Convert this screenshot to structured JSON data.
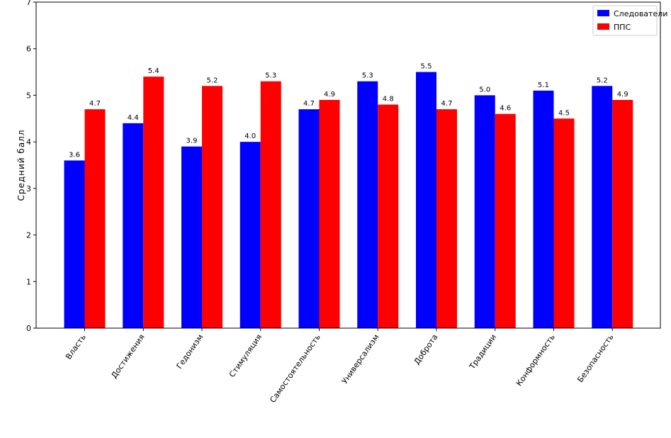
{
  "chart_data": {
    "type": "bar",
    "categories": [
      "Власть",
      "Достижения",
      "Гедонизм",
      "Стимуляция",
      "Самостоятельность",
      "Универсализм",
      "Доброта",
      "Традиции",
      "Конформность",
      "Безопасность"
    ],
    "series": [
      {
        "name": "Следователи",
        "color": "#0000ff",
        "values": [
          3.6,
          4.4,
          3.9,
          4.0,
          4.7,
          5.3,
          5.5,
          5.0,
          5.1,
          5.2
        ]
      },
      {
        "name": "ППС",
        "color": "#ff0000",
        "values": [
          4.7,
          5.4,
          5.2,
          5.3,
          4.9,
          4.8,
          4.7,
          4.6,
          4.5,
          4.9
        ]
      }
    ],
    "title": "",
    "xlabel": "",
    "ylabel": "Средний балл",
    "ylim": [
      0,
      7
    ],
    "yticks": [
      0,
      1,
      2,
      3,
      4,
      5,
      6,
      7
    ],
    "grid": false,
    "legend_position": "top-right"
  }
}
